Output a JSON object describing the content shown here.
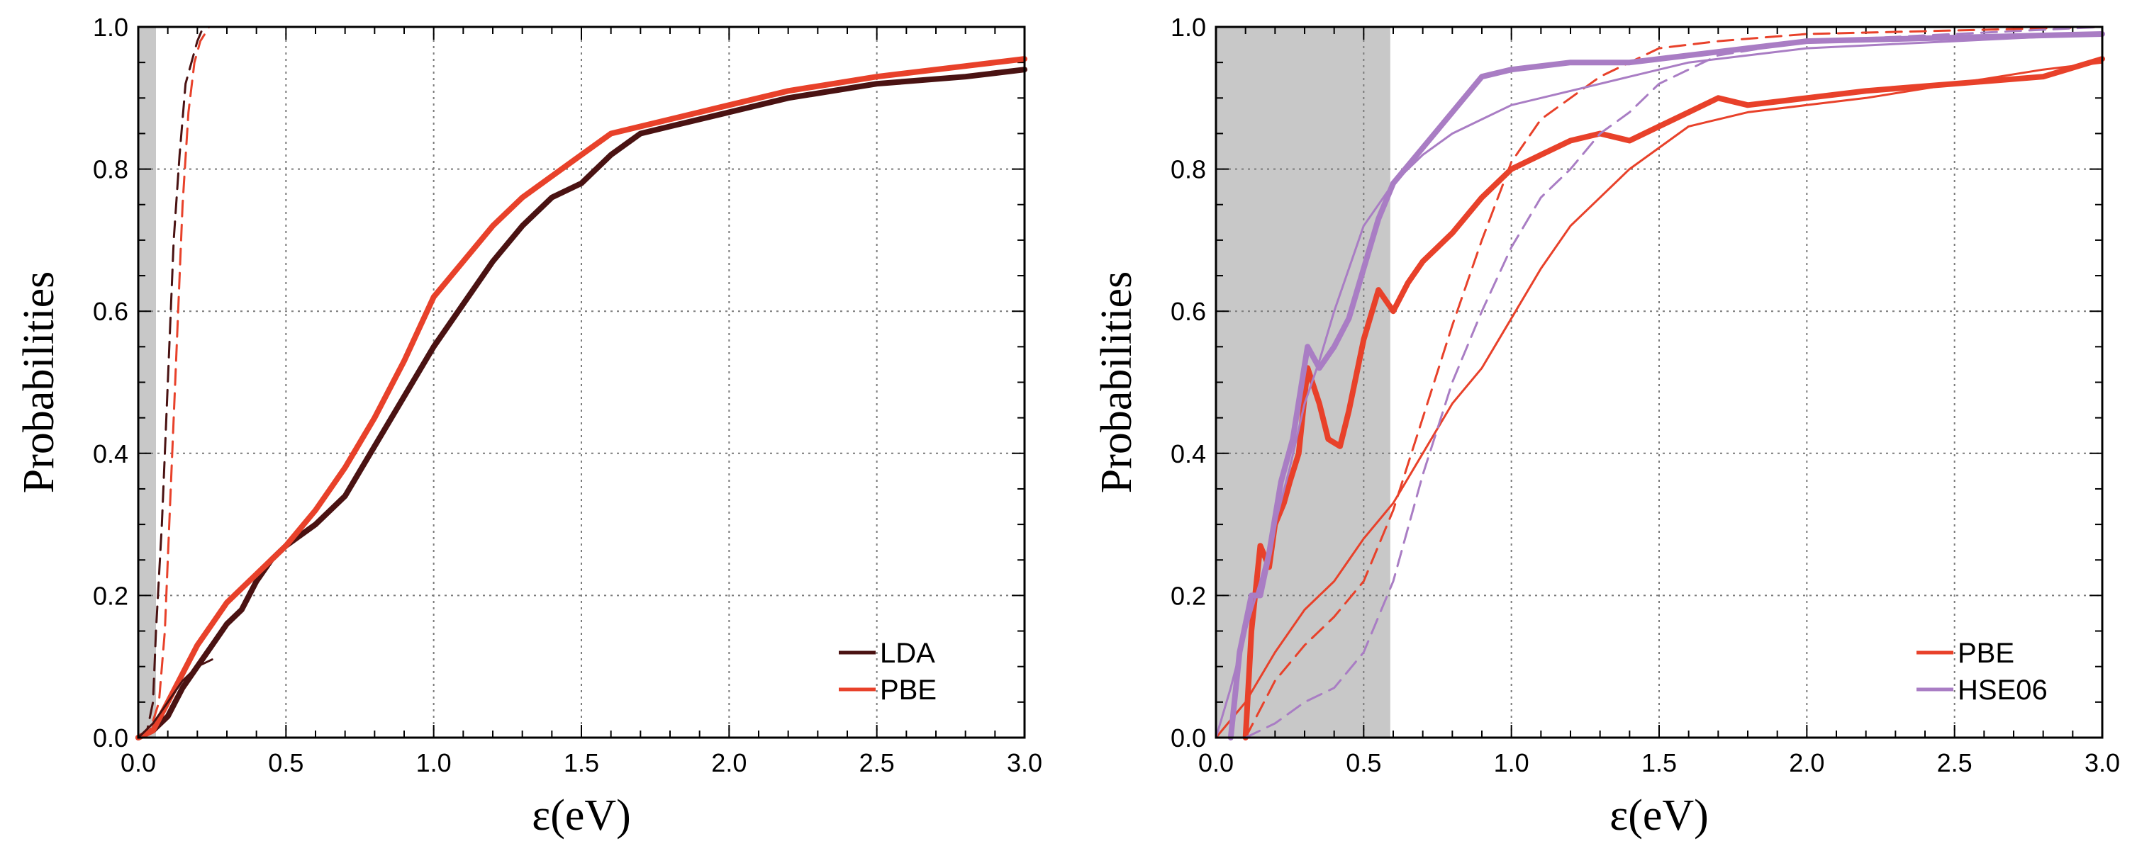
{
  "chart_data": [
    {
      "type": "line",
      "title": "",
      "xlabel": "ε(eV)",
      "ylabel": "Probabilities",
      "xlim": [
        0,
        3
      ],
      "ylim": [
        0,
        1
      ],
      "grid": true,
      "xticks": [
        "0.0",
        "0.5",
        "1.0",
        "1.5",
        "2.0",
        "2.5",
        "3.0"
      ],
      "yticks": [
        "0.0",
        "0.2",
        "0.4",
        "0.6",
        "0.8",
        "1.0"
      ],
      "shaded_region": {
        "x0": 0.0,
        "x1": 0.06
      },
      "legend": {
        "placement": "bottom-right",
        "entries": [
          {
            "label": "LDA",
            "color": "#4a1212"
          },
          {
            "label": "PBE",
            "color": "#e8412a"
          }
        ]
      },
      "series": [
        {
          "name": "LDA",
          "style": "dashed",
          "width": "thin",
          "color": "#4a1212",
          "points": [
            [
              0,
              0
            ],
            [
              0.03,
              0.01
            ],
            [
              0.05,
              0.05
            ],
            [
              0.06,
              0.15
            ],
            [
              0.08,
              0.3
            ],
            [
              0.1,
              0.5
            ],
            [
              0.12,
              0.7
            ],
            [
              0.14,
              0.82
            ],
            [
              0.16,
              0.92
            ],
            [
              0.18,
              0.95
            ],
            [
              0.2,
              0.98
            ],
            [
              0.22,
              1.0
            ],
            [
              3.0,
              1.0
            ]
          ]
        },
        {
          "name": "PBE",
          "style": "dashed",
          "width": "thin",
          "color": "#e8412a",
          "points": [
            [
              0,
              0
            ],
            [
              0.04,
              0.01
            ],
            [
              0.07,
              0.05
            ],
            [
              0.09,
              0.15
            ],
            [
              0.11,
              0.35
            ],
            [
              0.13,
              0.55
            ],
            [
              0.15,
              0.75
            ],
            [
              0.17,
              0.88
            ],
            [
              0.19,
              0.95
            ],
            [
              0.21,
              0.98
            ],
            [
              0.24,
              1.0
            ],
            [
              3.0,
              1.0
            ]
          ]
        },
        {
          "name": "LDA",
          "style": "solid",
          "width": "thick",
          "color": "#4a1212",
          "points": [
            [
              0,
              0
            ],
            [
              0.05,
              0.01
            ],
            [
              0.1,
              0.03
            ],
            [
              0.15,
              0.07
            ],
            [
              0.2,
              0.1
            ],
            [
              0.25,
              0.13
            ],
            [
              0.3,
              0.16
            ],
            [
              0.35,
              0.18
            ],
            [
              0.4,
              0.22
            ],
            [
              0.45,
              0.25
            ],
            [
              0.5,
              0.27
            ],
            [
              0.6,
              0.3
            ],
            [
              0.7,
              0.34
            ],
            [
              0.8,
              0.41
            ],
            [
              0.9,
              0.48
            ],
            [
              1.0,
              0.55
            ],
            [
              1.1,
              0.61
            ],
            [
              1.2,
              0.67
            ],
            [
              1.3,
              0.72
            ],
            [
              1.4,
              0.76
            ],
            [
              1.5,
              0.78
            ],
            [
              1.6,
              0.82
            ],
            [
              1.7,
              0.85
            ],
            [
              1.8,
              0.86
            ],
            [
              2.0,
              0.88
            ],
            [
              2.2,
              0.9
            ],
            [
              2.5,
              0.92
            ],
            [
              2.8,
              0.93
            ],
            [
              3.0,
              0.94
            ]
          ]
        },
        {
          "name": "PBE",
          "style": "solid",
          "width": "thick",
          "color": "#e8412a",
          "points": [
            [
              0,
              0
            ],
            [
              0.05,
              0.01
            ],
            [
              0.1,
              0.05
            ],
            [
              0.15,
              0.09
            ],
            [
              0.2,
              0.13
            ],
            [
              0.25,
              0.16
            ],
            [
              0.3,
              0.19
            ],
            [
              0.4,
              0.23
            ],
            [
              0.5,
              0.27
            ],
            [
              0.6,
              0.32
            ],
            [
              0.7,
              0.38
            ],
            [
              0.8,
              0.45
            ],
            [
              0.9,
              0.53
            ],
            [
              1.0,
              0.62
            ],
            [
              1.1,
              0.67
            ],
            [
              1.2,
              0.72
            ],
            [
              1.3,
              0.76
            ],
            [
              1.4,
              0.79
            ],
            [
              1.5,
              0.82
            ],
            [
              1.6,
              0.85
            ],
            [
              1.8,
              0.87
            ],
            [
              2.0,
              0.89
            ],
            [
              2.2,
              0.91
            ],
            [
              2.5,
              0.93
            ],
            [
              2.8,
              0.945
            ],
            [
              3.0,
              0.955
            ]
          ]
        },
        {
          "name": "LDA",
          "style": "solid",
          "width": "thin",
          "color": "#4a1212",
          "points": [
            [
              0,
              0
            ],
            [
              0.05,
              0.02
            ],
            [
              0.1,
              0.05
            ],
            [
              0.15,
              0.08
            ],
            [
              0.2,
              0.1
            ],
            [
              0.25,
              0.11
            ]
          ]
        }
      ]
    },
    {
      "type": "line",
      "title": "",
      "xlabel": "ε(eV)",
      "ylabel": "Probabilities",
      "xlim": [
        0,
        3
      ],
      "ylim": [
        0,
        1
      ],
      "grid": true,
      "xticks": [
        "0.0",
        "0.5",
        "1.0",
        "1.5",
        "2.0",
        "2.5",
        "3.0"
      ],
      "yticks": [
        "0.0",
        "0.2",
        "0.4",
        "0.6",
        "0.8",
        "1.0"
      ],
      "shaded_region": {
        "x0": 0.0,
        "x1": 0.59
      },
      "legend": {
        "placement": "bottom-right",
        "entries": [
          {
            "label": "PBE",
            "color": "#e8412a"
          },
          {
            "label": "HSE06",
            "color": "#a97dc4"
          }
        ]
      },
      "series": [
        {
          "name": "PBE",
          "style": "solid",
          "width": "thin",
          "color": "#e8412a",
          "points": [
            [
              0,
              0
            ],
            [
              0.1,
              0.05
            ],
            [
              0.2,
              0.12
            ],
            [
              0.3,
              0.18
            ],
            [
              0.4,
              0.22
            ],
            [
              0.5,
              0.28
            ],
            [
              0.6,
              0.33
            ],
            [
              0.7,
              0.4
            ],
            [
              0.8,
              0.47
            ],
            [
              0.9,
              0.52
            ],
            [
              1.0,
              0.59
            ],
            [
              1.1,
              0.66
            ],
            [
              1.2,
              0.72
            ],
            [
              1.3,
              0.76
            ],
            [
              1.4,
              0.8
            ],
            [
              1.5,
              0.83
            ],
            [
              1.6,
              0.86
            ],
            [
              1.7,
              0.87
            ],
            [
              1.8,
              0.88
            ],
            [
              2.0,
              0.89
            ],
            [
              2.2,
              0.9
            ],
            [
              2.5,
              0.92
            ],
            [
              2.8,
              0.94
            ],
            [
              3.0,
              0.95
            ]
          ]
        },
        {
          "name": "PBE",
          "style": "solid",
          "width": "thick",
          "color": "#e8412a",
          "points": [
            [
              0.1,
              0.0
            ],
            [
              0.12,
              0.15
            ],
            [
              0.15,
              0.27
            ],
            [
              0.18,
              0.24
            ],
            [
              0.2,
              0.3
            ],
            [
              0.23,
              0.33
            ],
            [
              0.25,
              0.36
            ],
            [
              0.28,
              0.4
            ],
            [
              0.31,
              0.52
            ],
            [
              0.35,
              0.47
            ],
            [
              0.38,
              0.42
            ],
            [
              0.42,
              0.41
            ],
            [
              0.45,
              0.46
            ],
            [
              0.5,
              0.56
            ],
            [
              0.55,
              0.63
            ],
            [
              0.6,
              0.6
            ],
            [
              0.65,
              0.64
            ],
            [
              0.7,
              0.67
            ],
            [
              0.8,
              0.71
            ],
            [
              0.9,
              0.76
            ],
            [
              1.0,
              0.8
            ],
            [
              1.1,
              0.82
            ],
            [
              1.2,
              0.84
            ],
            [
              1.3,
              0.85
            ],
            [
              1.4,
              0.84
            ],
            [
              1.5,
              0.86
            ],
            [
              1.6,
              0.88
            ],
            [
              1.7,
              0.9
            ],
            [
              1.8,
              0.89
            ],
            [
              2.0,
              0.9
            ],
            [
              2.2,
              0.91
            ],
            [
              2.5,
              0.92
            ],
            [
              2.8,
              0.93
            ],
            [
              3.0,
              0.955
            ]
          ]
        },
        {
          "name": "PBE",
          "style": "dashed",
          "width": "thin",
          "color": "#e8412a",
          "points": [
            [
              0.1,
              0.0
            ],
            [
              0.2,
              0.08
            ],
            [
              0.3,
              0.13
            ],
            [
              0.4,
              0.17
            ],
            [
              0.5,
              0.22
            ],
            [
              0.6,
              0.32
            ],
            [
              0.7,
              0.45
            ],
            [
              0.8,
              0.58
            ],
            [
              0.9,
              0.7
            ],
            [
              1.0,
              0.81
            ],
            [
              1.1,
              0.87
            ],
            [
              1.2,
              0.9
            ],
            [
              1.3,
              0.93
            ],
            [
              1.4,
              0.95
            ],
            [
              1.5,
              0.97
            ],
            [
              1.7,
              0.98
            ],
            [
              2.0,
              0.99
            ],
            [
              3.0,
              1.0
            ]
          ]
        },
        {
          "name": "HSE06",
          "style": "solid",
          "width": "thin",
          "color": "#a97dc4",
          "points": [
            [
              0,
              0
            ],
            [
              0.05,
              0.07
            ],
            [
              0.1,
              0.15
            ],
            [
              0.15,
              0.22
            ],
            [
              0.2,
              0.3
            ],
            [
              0.25,
              0.38
            ],
            [
              0.3,
              0.47
            ],
            [
              0.35,
              0.53
            ],
            [
              0.4,
              0.6
            ],
            [
              0.45,
              0.66
            ],
            [
              0.5,
              0.72
            ],
            [
              0.6,
              0.78
            ],
            [
              0.7,
              0.82
            ],
            [
              0.8,
              0.85
            ],
            [
              0.9,
              0.87
            ],
            [
              1.0,
              0.89
            ],
            [
              1.2,
              0.91
            ],
            [
              1.4,
              0.93
            ],
            [
              1.6,
              0.95
            ],
            [
              1.8,
              0.96
            ],
            [
              2.0,
              0.97
            ],
            [
              2.5,
              0.98
            ],
            [
              3.0,
              0.99
            ]
          ]
        },
        {
          "name": "HSE06",
          "style": "solid",
          "width": "thick",
          "color": "#a97dc4",
          "points": [
            [
              0.05,
              0.0
            ],
            [
              0.08,
              0.12
            ],
            [
              0.12,
              0.2
            ],
            [
              0.15,
              0.2
            ],
            [
              0.18,
              0.26
            ],
            [
              0.22,
              0.36
            ],
            [
              0.26,
              0.42
            ],
            [
              0.31,
              0.55
            ],
            [
              0.35,
              0.52
            ],
            [
              0.4,
              0.55
            ],
            [
              0.45,
              0.59
            ],
            [
              0.5,
              0.66
            ],
            [
              0.55,
              0.73
            ],
            [
              0.6,
              0.78
            ],
            [
              0.7,
              0.83
            ],
            [
              0.8,
              0.88
            ],
            [
              0.9,
              0.93
            ],
            [
              1.0,
              0.94
            ],
            [
              1.2,
              0.95
            ],
            [
              1.4,
              0.95
            ],
            [
              1.6,
              0.96
            ],
            [
              1.8,
              0.97
            ],
            [
              2.0,
              0.98
            ],
            [
              2.5,
              0.985
            ],
            [
              3.0,
              0.99
            ]
          ]
        },
        {
          "name": "HSE06",
          "style": "dashed",
          "width": "thin",
          "color": "#a97dc4",
          "points": [
            [
              0.1,
              0.0
            ],
            [
              0.2,
              0.02
            ],
            [
              0.3,
              0.05
            ],
            [
              0.4,
              0.07
            ],
            [
              0.5,
              0.12
            ],
            [
              0.6,
              0.22
            ],
            [
              0.7,
              0.37
            ],
            [
              0.8,
              0.5
            ],
            [
              0.9,
              0.6
            ],
            [
              1.0,
              0.69
            ],
            [
              1.1,
              0.76
            ],
            [
              1.2,
              0.8
            ],
            [
              1.3,
              0.85
            ],
            [
              1.4,
              0.88
            ],
            [
              1.5,
              0.92
            ],
            [
              1.7,
              0.96
            ],
            [
              2.0,
              0.98
            ],
            [
              2.5,
              0.99
            ],
            [
              3.0,
              1.0
            ]
          ]
        }
      ]
    }
  ]
}
